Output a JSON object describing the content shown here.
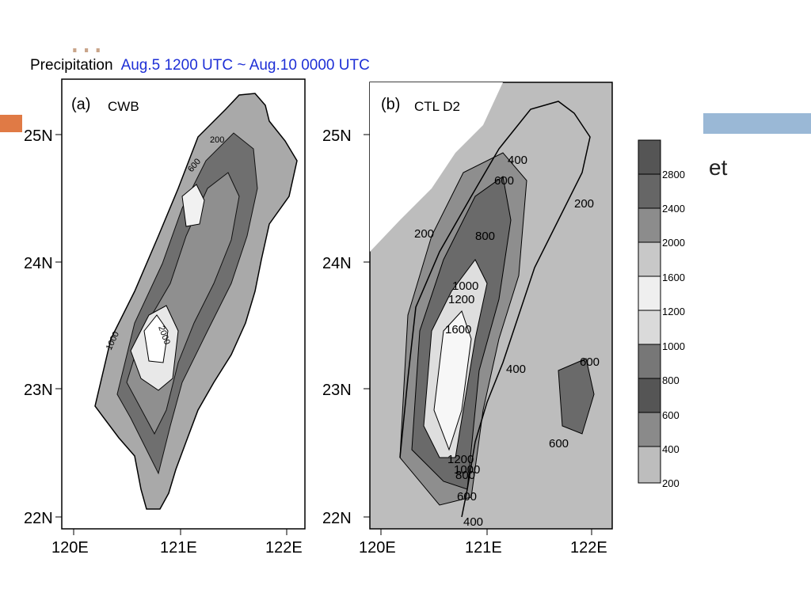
{
  "slide": {
    "background_title": "...",
    "right_fragment": "et",
    "header": {
      "label": "Precipitation",
      "period": "Aug.5 1200  UTC ~ Aug.10 0000 UTC"
    },
    "bottom_legend": "",
    "accent_left": "#e07a45",
    "accent_right": "#9ab8d6"
  },
  "panel_a": {
    "tag": "(a)",
    "title": "CWB",
    "y_ticks": [
      "25N",
      "24N",
      "23N",
      "22N"
    ],
    "x_ticks": [
      "120E",
      "121E",
      "122E"
    ],
    "contour_labels": [
      "200",
      "600",
      "1000",
      "2000"
    ]
  },
  "panel_b": {
    "tag": "(b)",
    "title": "CTL D2",
    "y_ticks": [
      "25N",
      "24N",
      "23N",
      "22N"
    ],
    "x_ticks": [
      "120E",
      "121E",
      "122E"
    ],
    "contour_labels": [
      "400",
      "600",
      "200",
      "200",
      "800",
      "1000",
      "1200",
      "1600",
      "400",
      "600",
      "600",
      "1200",
      "1000",
      "800",
      "600",
      "400"
    ]
  },
  "colorbar": {
    "levels": [
      "2800",
      "2400",
      "2000",
      "1600",
      "1200",
      "1000",
      "800",
      "600",
      "400",
      "200"
    ]
  }
}
